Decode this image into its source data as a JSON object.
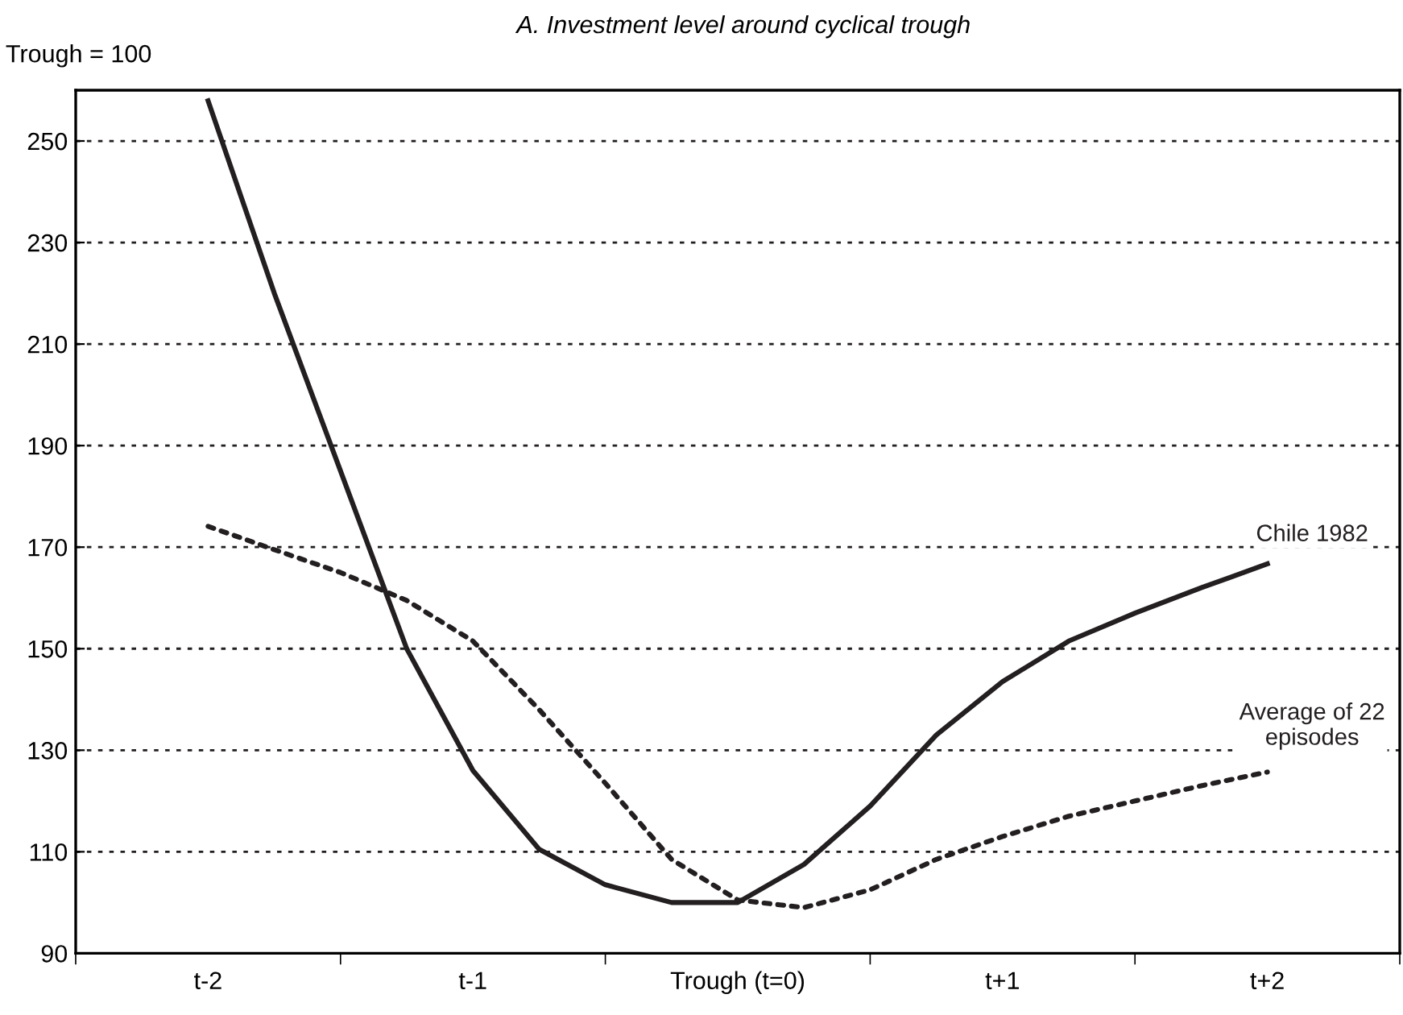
{
  "chart_data": {
    "type": "line",
    "title": "A. Investment level around cyclical trough",
    "ylabel": "Trough = 100",
    "categories": [
      "t-2",
      null,
      null,
      null,
      "t-1",
      null,
      null,
      null,
      "Trough (t=0)",
      null,
      null,
      null,
      "t+1",
      null,
      null,
      null,
      "t+2"
    ],
    "ylim": [
      90,
      260
    ],
    "yticks": [
      90,
      110,
      130,
      150,
      170,
      190,
      210,
      230,
      250
    ],
    "grid": "y",
    "legend": false,
    "series": [
      {
        "name": "Chile 1982",
        "color": "#231f20",
        "line_style": "solid",
        "values": [
          257.9,
          220,
          185,
          150,
          126,
          110.5,
          103.5,
          100,
          100,
          107.5,
          119,
          133,
          143.5,
          151.5,
          157,
          162,
          166.7
        ]
      },
      {
        "name": "Average of 22\nepisodes",
        "color": "#231f20",
        "line_style": "dotted",
        "values": [
          174.1,
          169.5,
          165,
          159.5,
          151.5,
          138,
          123.5,
          108.5,
          100.5,
          99,
          102.5,
          108.5,
          113,
          117,
          120,
          123,
          125.7
        ]
      }
    ]
  }
}
